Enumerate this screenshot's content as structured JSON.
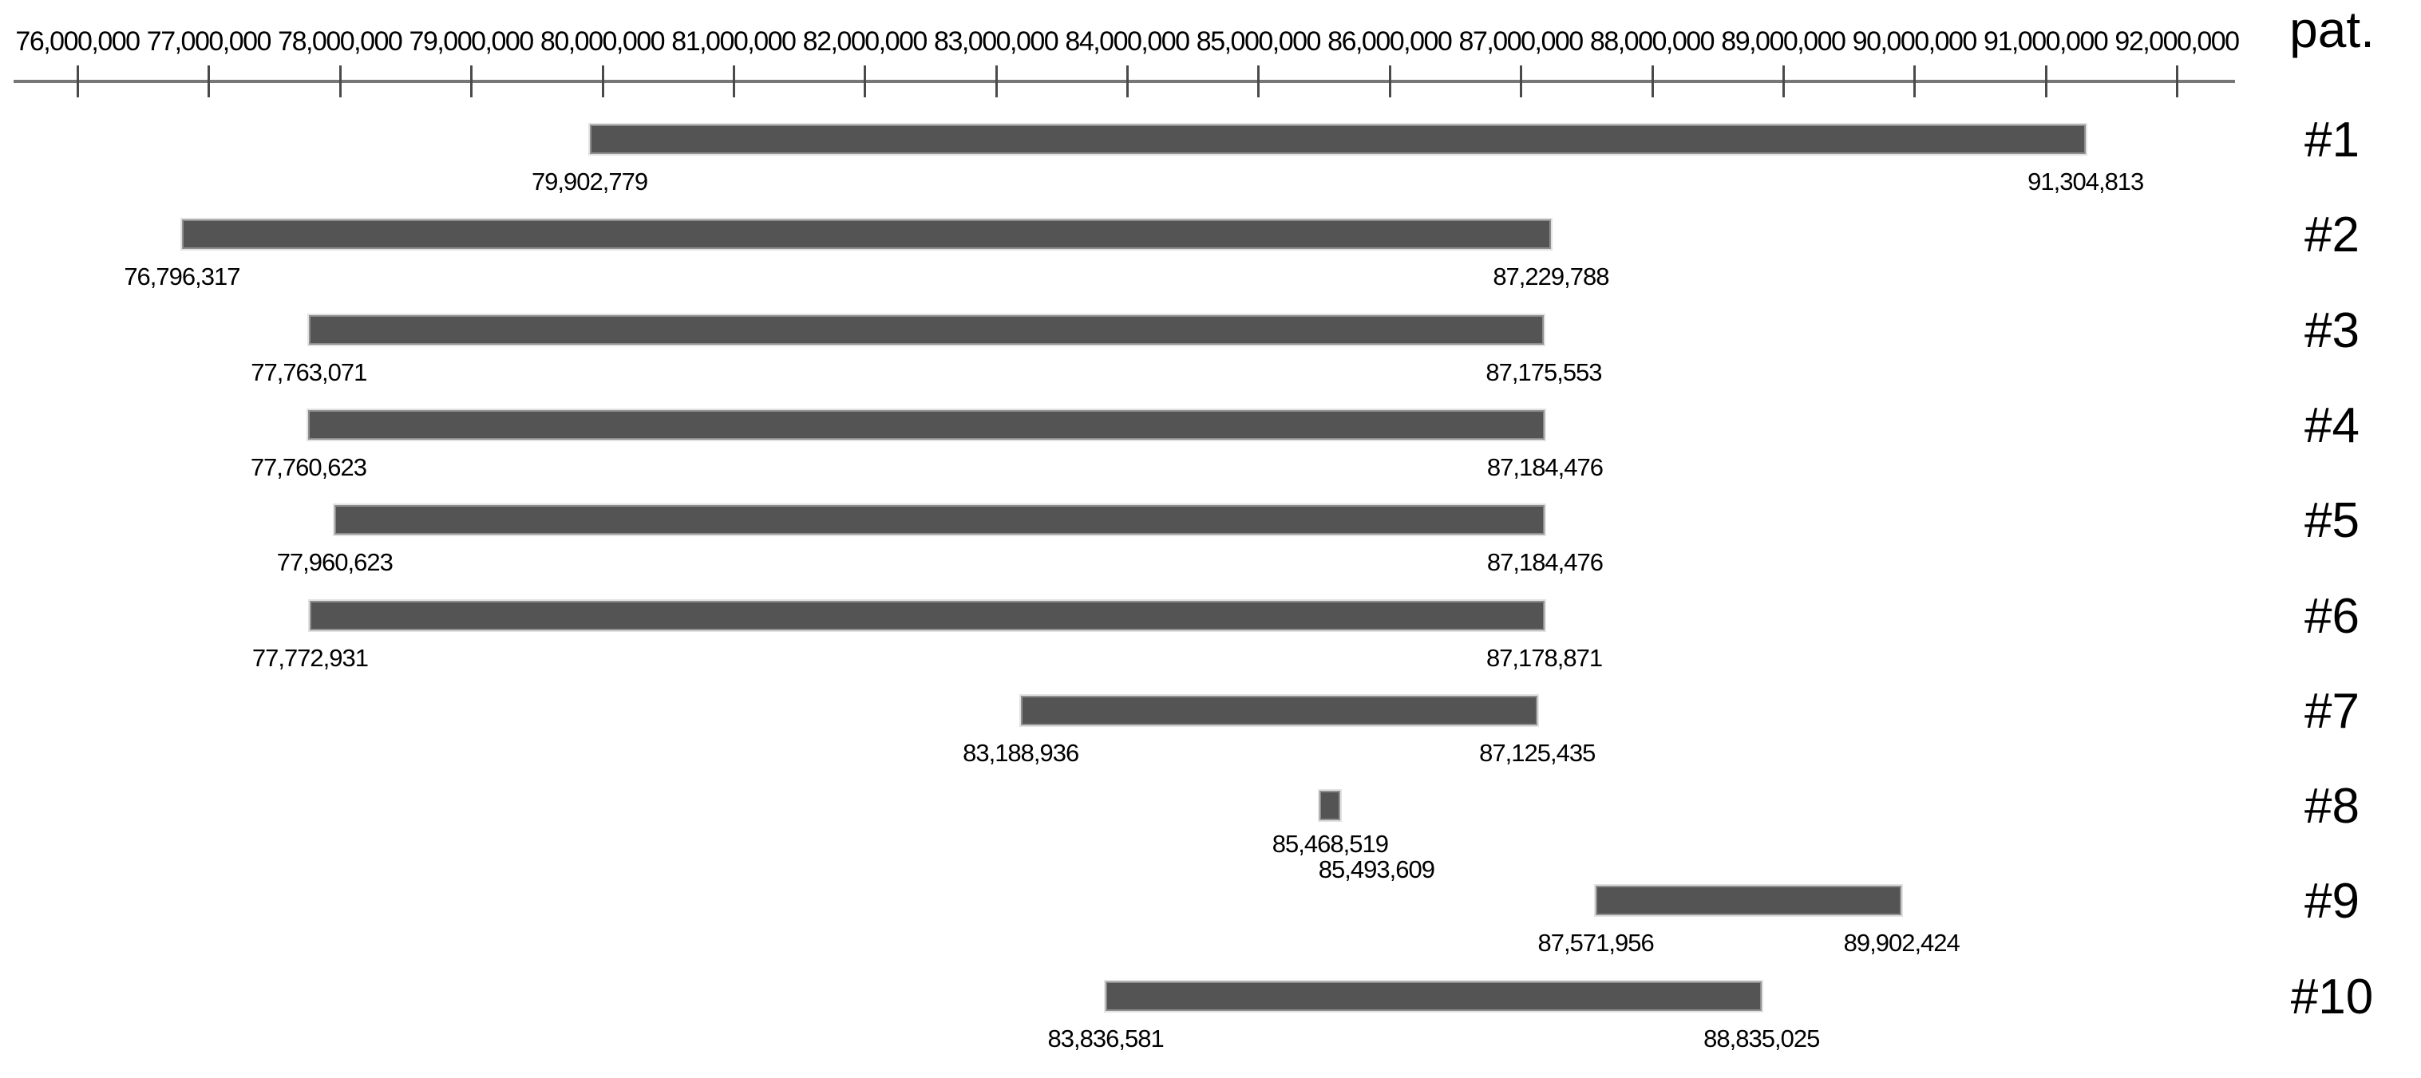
{
  "chart_data": {
    "type": "bar",
    "subtype": "horizontal-interval-range",
    "title": "",
    "right_axis_header": "pat.",
    "x_axis": {
      "min": 76000000,
      "max": 92000000,
      "tick_interval": 1000000,
      "tick_labels": [
        "76,000,000",
        "77,000,000",
        "78,000,000",
        "79,000,000",
        "80,000,000",
        "81,000,000",
        "82,000,000",
        "83,000,000",
        "84,000,000",
        "85,000,000",
        "86,000,000",
        "87,000,000",
        "88,000,000",
        "89,000,000",
        "90,000,000",
        "91,000,000",
        "92,000,000"
      ]
    },
    "categories": [
      "#1",
      "#2",
      "#3",
      "#4",
      "#5",
      "#6",
      "#7",
      "#8",
      "#9",
      "#10"
    ],
    "rows": [
      {
        "category": "#1",
        "start": 79902779,
        "end": 91304813,
        "start_label": "79,902,779",
        "end_label": "91,304,813"
      },
      {
        "category": "#2",
        "start": 76796317,
        "end": 87229788,
        "start_label": "76,796,317",
        "end_label": "87,229,788"
      },
      {
        "category": "#3",
        "start": 77763071,
        "end": 87175553,
        "start_label": "77,763,071",
        "end_label": "87,175,553"
      },
      {
        "category": "#4",
        "start": 77760623,
        "end": 87184476,
        "start_label": "77,760,623",
        "end_label": "87,184,476"
      },
      {
        "category": "#5",
        "start": 77960623,
        "end": 87184476,
        "start_label": "77,960,623",
        "end_label": "87,184,476"
      },
      {
        "category": "#6",
        "start": 77772931,
        "end": 87178871,
        "start_label": "77,772,931",
        "end_label": "87,178,871"
      },
      {
        "category": "#7",
        "start": 83188936,
        "end": 87125435,
        "start_label": "83,188,936",
        "end_label": "87,125,435"
      },
      {
        "category": "#8",
        "start": 85468519,
        "end": 85493609,
        "start_label": "85,468,519",
        "end_label": "85,493,609"
      },
      {
        "category": "#9",
        "start": 87571956,
        "end": 89902424,
        "start_label": "87,571,956",
        "end_label": "89,902,424"
      },
      {
        "category": "#10",
        "start": 83836581,
        "end": 88835025,
        "start_label": "83,836,581",
        "end_label": "88,835,025"
      }
    ],
    "legend": null,
    "grid": false
  },
  "colors": {
    "bar_fill": "#545454",
    "bar_border": "#8f8f8f",
    "axis_line": "#777777",
    "tick_mark": "#4a4a4a",
    "text": "#000000"
  }
}
